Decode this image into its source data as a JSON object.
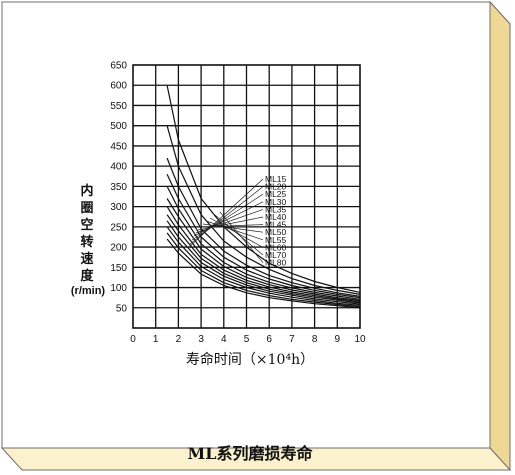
{
  "colors": {
    "panel_face": "#fbf1cc",
    "panel_edge": "#efd795",
    "panel_dark": "#d9b86a",
    "frame_line": "#6f6f6f",
    "curve": "#111111",
    "grid": "#111111"
  },
  "caption": "ML系列磨损寿命",
  "chart_data": {
    "type": "line",
    "x_ticks": [
      "0",
      "1",
      "2",
      "3",
      "4",
      "5",
      "6",
      "7",
      "8",
      "9",
      "10"
    ],
    "y_ticks": [
      "50",
      "100",
      "150",
      "200",
      "250",
      "300",
      "350",
      "400",
      "450",
      "500",
      "550",
      "600",
      "650"
    ],
    "xlim": [
      0,
      10
    ],
    "ylim": [
      0,
      650
    ],
    "grid": true,
    "ylabel_chars": [
      "内",
      "圈",
      "空",
      "转",
      "速",
      "度"
    ],
    "ylabel_unit": "(r/min)",
    "xlabel": "寿命时间（×10⁴h）",
    "legend_labels": [
      "ML15",
      "ML20",
      "ML25",
      "ML30",
      "ML35",
      "ML40",
      "ML45",
      "ML50",
      "ML55",
      "ML60",
      "ML70",
      "ML80"
    ],
    "series": [
      {
        "name": "ML15",
        "x": [
          1.5,
          2,
          3,
          4,
          5,
          6,
          7,
          8,
          9,
          10
        ],
        "values": [
          600,
          465,
          320,
          250,
          200,
          160,
          135,
          115,
          100,
          88
        ]
      },
      {
        "name": "ML20",
        "x": [
          1.5,
          2,
          3,
          4,
          5,
          6,
          7,
          8,
          9,
          10
        ],
        "values": [
          500,
          400,
          280,
          215,
          175,
          145,
          122,
          105,
          93,
          83
        ]
      },
      {
        "name": "ML25",
        "x": [
          1.5,
          2,
          3,
          4,
          5,
          6,
          7,
          8,
          9,
          10
        ],
        "values": [
          420,
          350,
          245,
          190,
          155,
          130,
          112,
          98,
          87,
          78
        ]
      },
      {
        "name": "ML30",
        "x": [
          1.5,
          2,
          3,
          4,
          5,
          6,
          7,
          8,
          9,
          10
        ],
        "values": [
          380,
          320,
          225,
          175,
          143,
          121,
          105,
          93,
          83,
          75
        ]
      },
      {
        "name": "ML35",
        "x": [
          1.5,
          2,
          3,
          4,
          5,
          6,
          7,
          8,
          9,
          10
        ],
        "values": [
          350,
          295,
          208,
          162,
          133,
          113,
          99,
          88,
          79,
          71
        ]
      },
      {
        "name": "ML40",
        "x": [
          1.5,
          2,
          3,
          4,
          5,
          6,
          7,
          8,
          9,
          10
        ],
        "values": [
          320,
          275,
          195,
          152,
          125,
          107,
          94,
          84,
          75,
          68
        ]
      },
      {
        "name": "ML45",
        "x": [
          1.5,
          2,
          3,
          4,
          5,
          6,
          7,
          8,
          9,
          10
        ],
        "values": [
          300,
          255,
          182,
          143,
          118,
          101,
          89,
          80,
          72,
          65
        ]
      },
      {
        "name": "ML50",
        "x": [
          1.5,
          2,
          3,
          4,
          5,
          6,
          7,
          8,
          9,
          10
        ],
        "values": [
          280,
          240,
          172,
          135,
          112,
          96,
          85,
          76,
          69,
          62
        ]
      },
      {
        "name": "ML55",
        "x": [
          1.5,
          2,
          3,
          4,
          5,
          6,
          7,
          8,
          9,
          10
        ],
        "values": [
          265,
          225,
          162,
          128,
          106,
          91,
          81,
          72,
          65,
          59
        ]
      },
      {
        "name": "ML60",
        "x": [
          1.5,
          2,
          3,
          4,
          5,
          6,
          7,
          8,
          9,
          10
        ],
        "values": [
          250,
          212,
          152,
          120,
          100,
          86,
          76,
          68,
          61,
          56
        ]
      },
      {
        "name": "ML70",
        "x": [
          1.5,
          2,
          3,
          4,
          5,
          6,
          7,
          8,
          9,
          10
        ],
        "values": [
          235,
          198,
          142,
          112,
          93,
          80,
          71,
          64,
          58,
          53
        ]
      },
      {
        "name": "ML80",
        "x": [
          1.5,
          2,
          3,
          4,
          5,
          6,
          7,
          8,
          9,
          10
        ],
        "values": [
          220,
          185,
          133,
          105,
          87,
          75,
          67,
          60,
          55,
          50
        ]
      }
    ]
  }
}
